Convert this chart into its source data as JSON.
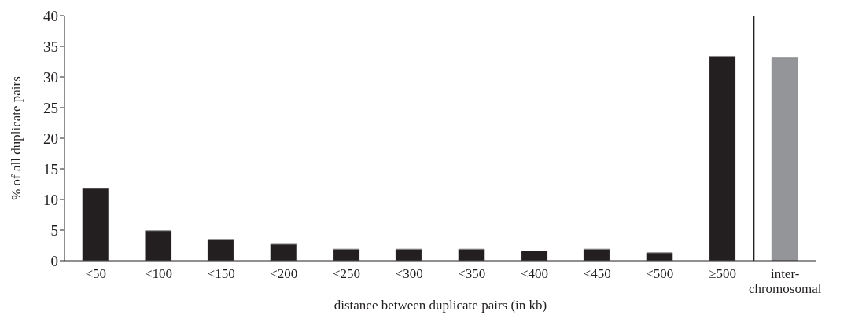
{
  "chart_data": {
    "type": "bar",
    "xlabel": "distance between duplicate pairs (in kb)",
    "ylabel": "% of all duplicate pairs",
    "categories": [
      "<50",
      "<100",
      "<150",
      "<200",
      "<250",
      "<300",
      "<350",
      "<400",
      "<450",
      "<500",
      "≥500",
      "inter-chromosomal"
    ],
    "values": [
      11.8,
      4.9,
      3.5,
      2.7,
      1.9,
      1.9,
      1.9,
      1.6,
      1.9,
      1.3,
      33.4,
      33.1
    ],
    "colors": [
      "#231f20",
      "#231f20",
      "#231f20",
      "#231f20",
      "#231f20",
      "#231f20",
      "#231f20",
      "#231f20",
      "#231f20",
      "#231f20",
      "#231f20",
      "#939598"
    ],
    "ylim": [
      0,
      40
    ],
    "yticks": [
      0,
      5,
      10,
      15,
      20,
      25,
      30,
      35,
      40
    ],
    "grid": false,
    "legend": false
  }
}
